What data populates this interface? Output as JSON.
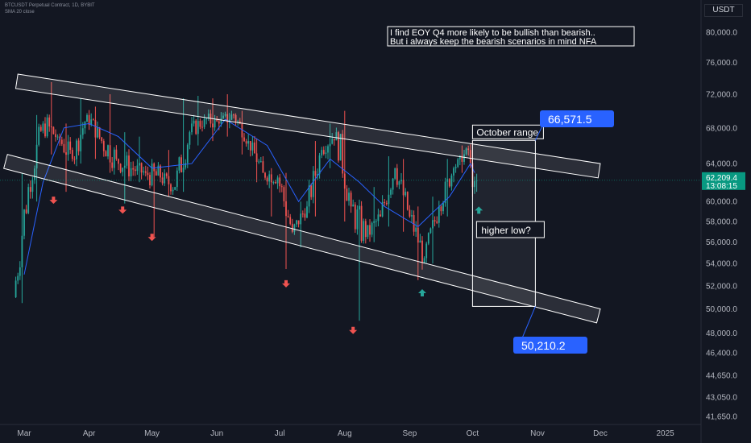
{
  "header": {
    "symbol_line": "BTCUSDT Perpetual Contract, 1D, BYBIT",
    "indicator_line": "SMA 20 close"
  },
  "currency": "USDT",
  "annotations": {
    "note_line1": "I find EOY Q4 more likely to be bullish than bearish..",
    "note_line2": "But i always keep the bearish scenarios in mind NFA",
    "october_range": "October range",
    "higher_low": "higher low?",
    "range_top": "66,571.5",
    "range_bottom": "50,210.2"
  },
  "price_label": {
    "price": "62,209.4",
    "countdown": "13:08:15"
  },
  "colors": {
    "background": "#131722",
    "up": "#26a69a",
    "down": "#ef5350",
    "sma": "#2962ff",
    "callout": "#2962ff",
    "channel": "#ffffff",
    "price_tag": "#089981"
  },
  "chart_data": {
    "type": "candlestick",
    "scale": "log",
    "x_tick_labels": [
      "Mar",
      "Apr",
      "May",
      "Jun",
      "Jul",
      "Aug",
      "Sep",
      "Oct",
      "Nov",
      "Dec",
      "2025"
    ],
    "y_tick_labels": [
      "80,000.0",
      "76,000.0",
      "72,000.0",
      "68,000.0",
      "64,000.0",
      "60,000.0",
      "58,000.0",
      "56,000.0",
      "54,000.0",
      "52,000.0",
      "50,000.0",
      "48,000.0",
      "46,400.0",
      "44,650.0",
      "43,050.0",
      "41,650.0"
    ],
    "ylim": [
      40400,
      88000
    ],
    "series": [
      {
        "kind": "ohlc",
        "dates": [
          "2024-02-26",
          "2024-03-04",
          "2024-03-11",
          "2024-03-18",
          "2024-03-25",
          "2024-04-01",
          "2024-04-08",
          "2024-04-15",
          "2024-04-22",
          "2024-04-29",
          "2024-05-06",
          "2024-05-13",
          "2024-05-20",
          "2024-05-27",
          "2024-06-03",
          "2024-06-10",
          "2024-06-17",
          "2024-06-24",
          "2024-07-01",
          "2024-07-08",
          "2024-07-15",
          "2024-07-22",
          "2024-07-29",
          "2024-08-05",
          "2024-08-12",
          "2024-08-19",
          "2024-08-26",
          "2024-09-02",
          "2024-09-09",
          "2024-09-16",
          "2024-09-23",
          "2024-09-30",
          "2024-10-02"
        ],
        "ohlc": [
          [
            51000,
            63000,
            50500,
            61500
          ],
          [
            61500,
            69500,
            60000,
            68500
          ],
          [
            68500,
            73500,
            65000,
            67000
          ],
          [
            67000,
            68500,
            61000,
            64500
          ],
          [
            64500,
            71500,
            64000,
            69500
          ],
          [
            69500,
            70500,
            64500,
            66500
          ],
          [
            66500,
            72000,
            63000,
            64500
          ],
          [
            64500,
            67500,
            59800,
            63500
          ],
          [
            63500,
            67000,
            62000,
            63000
          ],
          [
            63000,
            64000,
            56500,
            62500
          ],
          [
            62500,
            65500,
            60500,
            61500
          ],
          [
            61500,
            71500,
            61000,
            67500
          ],
          [
            67500,
            71800,
            66000,
            69000
          ],
          [
            69000,
            71500,
            66500,
            68500
          ],
          [
            68500,
            72000,
            67000,
            69500
          ],
          [
            69500,
            70000,
            65000,
            66500
          ],
          [
            66500,
            66800,
            62000,
            63000
          ],
          [
            63000,
            63500,
            58500,
            62500
          ],
          [
            62500,
            63000,
            53500,
            57000
          ],
          [
            57000,
            60000,
            55500,
            59500
          ],
          [
            59500,
            66500,
            58500,
            65500
          ],
          [
            65500,
            68500,
            63500,
            67500
          ],
          [
            67500,
            70000,
            58000,
            59500
          ],
          [
            59500,
            59800,
            49000,
            56500
          ],
          [
            56500,
            61500,
            56000,
            58500
          ],
          [
            58500,
            64800,
            57500,
            63500
          ],
          [
            63500,
            64500,
            57000,
            58500
          ],
          [
            58500,
            59500,
            52500,
            54500
          ],
          [
            54500,
            60500,
            54000,
            59500
          ],
          [
            59500,
            64500,
            58500,
            63500
          ],
          [
            63500,
            66000,
            63000,
            65500
          ],
          [
            65500,
            66500,
            60500,
            61500
          ],
          [
            61500,
            62800,
            61000,
            62209.4
          ]
        ]
      },
      {
        "kind": "sma",
        "dates": [
          "2024-03-01",
          "2024-03-10",
          "2024-03-20",
          "2024-04-01",
          "2024-04-15",
          "2024-05-01",
          "2024-05-20",
          "2024-06-05",
          "2024-06-25",
          "2024-07-10",
          "2024-07-25",
          "2024-08-08",
          "2024-08-20",
          "2024-09-05",
          "2024-09-20",
          "2024-09-30",
          "2024-10-02"
        ],
        "values": [
          53000,
          62000,
          68000,
          68500,
          67000,
          63500,
          64000,
          69000,
          66000,
          60000,
          64500,
          62000,
          59500,
          57500,
          60500,
          64000,
          63000
        ]
      }
    ],
    "channel": {
      "upper": [
        [
          "2024-02-27",
          74500
        ],
        [
          "2024-12-01",
          64000
        ]
      ],
      "lower": [
        [
          "2024-02-22",
          65000
        ],
        [
          "2024-12-01",
          50000
        ]
      ]
    },
    "october_range": {
      "from": "2024-10-01",
      "to": "2024-10-31",
      "high": 66571.5,
      "low": 50210.2
    },
    "markers": {
      "down": [
        [
          "2024-03-15",
          60500
        ],
        [
          "2024-04-17",
          59500
        ],
        [
          "2024-05-01",
          56800
        ],
        [
          "2024-07-04",
          52500
        ],
        [
          "2024-08-05",
          48500
        ]
      ],
      "up": [
        [
          "2024-09-07",
          51700
        ],
        [
          "2024-10-04",
          59500
        ]
      ]
    },
    "last_price": 62209.4
  }
}
